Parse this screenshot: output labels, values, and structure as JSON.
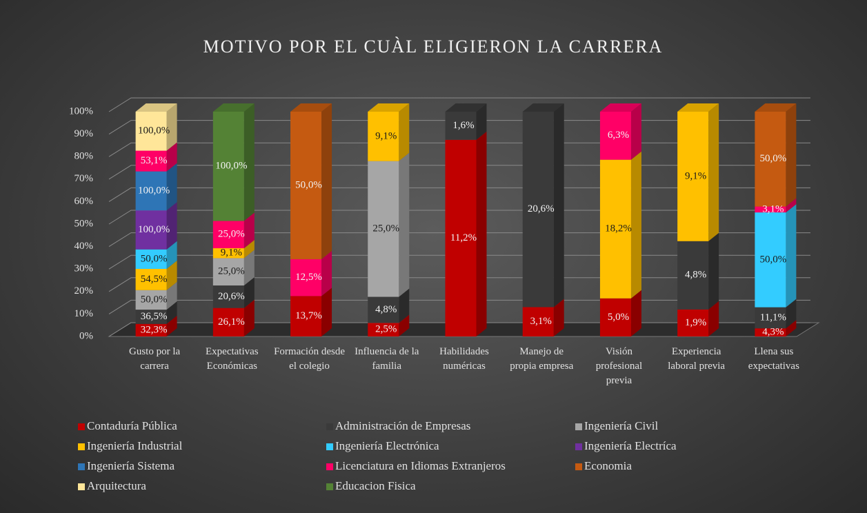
{
  "chart_data": {
    "type": "bar",
    "stacking": "percent",
    "title": "MOTIVO POR EL CUÀL ELIGIERON LA CARRERA",
    "categories": [
      "Gusto por la carrera",
      "Expectativas Económicas",
      "Formación desde el colegio",
      "Influencia de la familia",
      "Habilidades numéricas",
      "Manejo de propia empresa",
      "Visión profesional previa",
      "Experiencia laboral previa",
      "Llena sus expectativas"
    ],
    "ylim": [
      0,
      100
    ],
    "yticks": [
      {
        "value": 0,
        "label": "0%"
      },
      {
        "value": 10,
        "label": "10%"
      },
      {
        "value": 20,
        "label": "20%"
      },
      {
        "value": 30,
        "label": "30%"
      },
      {
        "value": 40,
        "label": "40%"
      },
      {
        "value": 50,
        "label": "50%"
      },
      {
        "value": 60,
        "label": "60%"
      },
      {
        "value": 70,
        "label": "70%"
      },
      {
        "value": 80,
        "label": "80%"
      },
      {
        "value": 90,
        "label": "90%"
      },
      {
        "value": 100,
        "label": "100%"
      }
    ],
    "grid": true,
    "series": [
      {
        "name": "Contaduría Pública",
        "color": "#c00000",
        "values": [
          32.3,
          26.1,
          13.7,
          2.5,
          11.2,
          3.1,
          5.0,
          1.9,
          4.3
        ],
        "value_labels": [
          "32,3%",
          "26,1%",
          "13,7%",
          "2,5%",
          "11,2%",
          "3,1%",
          "5,0%",
          "1,9%",
          "4,3%"
        ]
      },
      {
        "name": "Administración de Empresas",
        "color": "#3a3a3a",
        "values": [
          36.5,
          20.6,
          null,
          4.8,
          1.6,
          20.6,
          null,
          4.8,
          11.1
        ],
        "value_labels": [
          "36,5%",
          "20,6%",
          null,
          "4,8%",
          "1,6%",
          "20,6%",
          null,
          "4,8%",
          "11,1%"
        ]
      },
      {
        "name": "Ingeniería Civil",
        "color": "#a6a6a6",
        "values": [
          50.0,
          25.0,
          null,
          25.0,
          null,
          null,
          null,
          null,
          null
        ],
        "value_labels": [
          "50,0%",
          "25,0%",
          null,
          "25,0%",
          null,
          null,
          null,
          null,
          null
        ]
      },
      {
        "name": "Ingeniería Industrial",
        "color": "#ffc000",
        "values": [
          54.5,
          9.1,
          null,
          9.1,
          null,
          null,
          18.2,
          9.1,
          null
        ],
        "value_labels": [
          "54,5%",
          "9,1%",
          null,
          "9,1%",
          null,
          null,
          "18,2%",
          "9,1%",
          null
        ]
      },
      {
        "name": "Ingeniería Electrónica",
        "color": "#33ccff",
        "values": [
          50.0,
          null,
          null,
          null,
          null,
          null,
          null,
          null,
          50.0
        ],
        "value_labels": [
          "50,0%",
          null,
          null,
          null,
          null,
          null,
          null,
          null,
          "50,0%"
        ]
      },
      {
        "name": "Ingeniería Electríca",
        "color": "#7030a0",
        "values": [
          100.0,
          null,
          null,
          null,
          null,
          null,
          null,
          null,
          null
        ],
        "value_labels": [
          "100,0%",
          null,
          null,
          null,
          null,
          null,
          null,
          null,
          null
        ]
      },
      {
        "name": "Ingeniería Sistema",
        "color": "#2e75b6",
        "values": [
          100.0,
          null,
          null,
          null,
          null,
          null,
          null,
          null,
          null
        ],
        "value_labels": [
          "100,0%",
          null,
          null,
          null,
          null,
          null,
          null,
          null,
          null
        ]
      },
      {
        "name": "Licenciatura en Idiomas Extranjeros",
        "color": "#ff0066",
        "values": [
          53.1,
          25.0,
          12.5,
          null,
          null,
          null,
          6.3,
          null,
          3.1
        ],
        "value_labels": [
          "53,1%",
          "25,0%",
          "12,5%",
          null,
          null,
          null,
          "6,3%",
          null,
          "3,1%"
        ]
      },
      {
        "name": "Economia",
        "color": "#c55a11",
        "values": [
          null,
          null,
          50.0,
          null,
          null,
          null,
          null,
          null,
          50.0
        ],
        "value_labels": [
          null,
          null,
          "50,0%",
          null,
          null,
          null,
          null,
          null,
          "50,0%"
        ]
      },
      {
        "name": "Arquitectura",
        "color": "#ffe699",
        "values": [
          100.0,
          null,
          null,
          null,
          null,
          null,
          null,
          null,
          null
        ],
        "value_labels": [
          "100,0%",
          null,
          null,
          null,
          null,
          null,
          null,
          null,
          null
        ]
      },
      {
        "name": "Educacion Fisica",
        "color": "#548235",
        "values": [
          null,
          100.0,
          null,
          null,
          null,
          null,
          null,
          null,
          null
        ],
        "value_labels": [
          null,
          "100,0%",
          null,
          null,
          null,
          null,
          null,
          null,
          null
        ]
      }
    ]
  }
}
